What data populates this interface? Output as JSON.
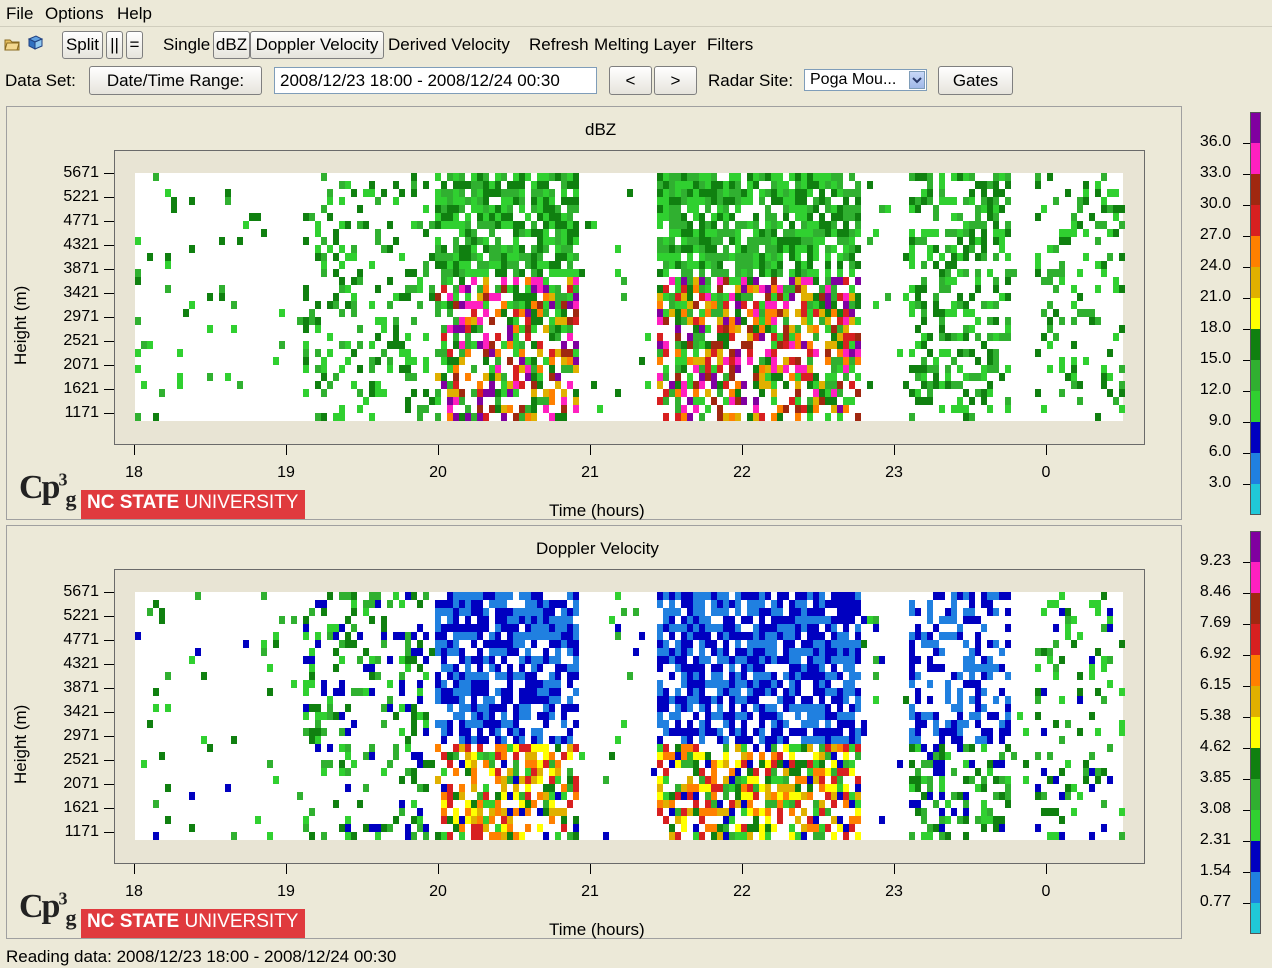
{
  "menu": {
    "file": "File",
    "options": "Options",
    "help": "Help"
  },
  "toolbar": {
    "split": "Split",
    "parallel": "||",
    "equal": "=",
    "single": "Single",
    "dbz": "dBZ",
    "doppler": "Doppler Velocity",
    "derived": "Derived Velocity",
    "refresh": "Refresh",
    "melting": "Melting Layer",
    "filters": "Filters"
  },
  "dataset": {
    "label": "Data Set:",
    "datetime_button": "Date/Time Range:",
    "range_value": "2008/12/23 18:00 - 2008/12/24 00:30",
    "prev": "<",
    "next": ">",
    "radar_label": "Radar Site:",
    "radar_value": "Poga Mou...",
    "gates": "Gates"
  },
  "plots": [
    {
      "title": "dBZ",
      "ylabel": "Height (m)",
      "xlabel": "Time (hours)",
      "yticks": [
        "5671",
        "5221",
        "4771",
        "4321",
        "3871",
        "3421",
        "2971",
        "2521",
        "2071",
        "1621",
        "1171"
      ],
      "xticks": [
        "18",
        "19",
        "20",
        "21",
        "22",
        "23",
        "0"
      ],
      "colorbar": [
        "36.0",
        "33.0",
        "30.0",
        "27.0",
        "24.0",
        "21.0",
        "18.0",
        "15.0",
        "12.0",
        "9.0",
        "6.0",
        "3.0"
      ],
      "colors": [
        "#8000a0",
        "#ff20c0",
        "#a02810",
        "#d82020",
        "#ff8000",
        "#e0b000",
        "#ffff00",
        "#108010",
        "#30b030",
        "#30d030",
        "#0000c0",
        "#2080e0",
        "#20c8d8"
      ]
    },
    {
      "title": "Doppler Velocity",
      "ylabel": "Height (m)",
      "xlabel": "Time (hours)",
      "yticks": [
        "5671",
        "5221",
        "4771",
        "4321",
        "3871",
        "3421",
        "2971",
        "2521",
        "2071",
        "1621",
        "1171"
      ],
      "xticks": [
        "18",
        "19",
        "20",
        "21",
        "22",
        "23",
        "0"
      ],
      "colorbar": [
        "9.23",
        "8.46",
        "7.69",
        "6.92",
        "6.15",
        "5.38",
        "4.62",
        "3.85",
        "3.08",
        "2.31",
        "1.54",
        "0.77"
      ],
      "colors": [
        "#8000a0",
        "#ff20c0",
        "#a02810",
        "#d82020",
        "#ff8000",
        "#e0b000",
        "#ffff00",
        "#108010",
        "#30b030",
        "#30d030",
        "#0000c0",
        "#2080e0",
        "#20c8d8"
      ]
    }
  ],
  "logo": {
    "cp": "Cp",
    "sup": "3",
    "sub": "g",
    "ncsu_bold": "NC STATE",
    "ncsu_light": " UNIVERSITY"
  },
  "status": "Reading data: 2008/12/23 18:00 - 2008/12/24 00:30"
}
